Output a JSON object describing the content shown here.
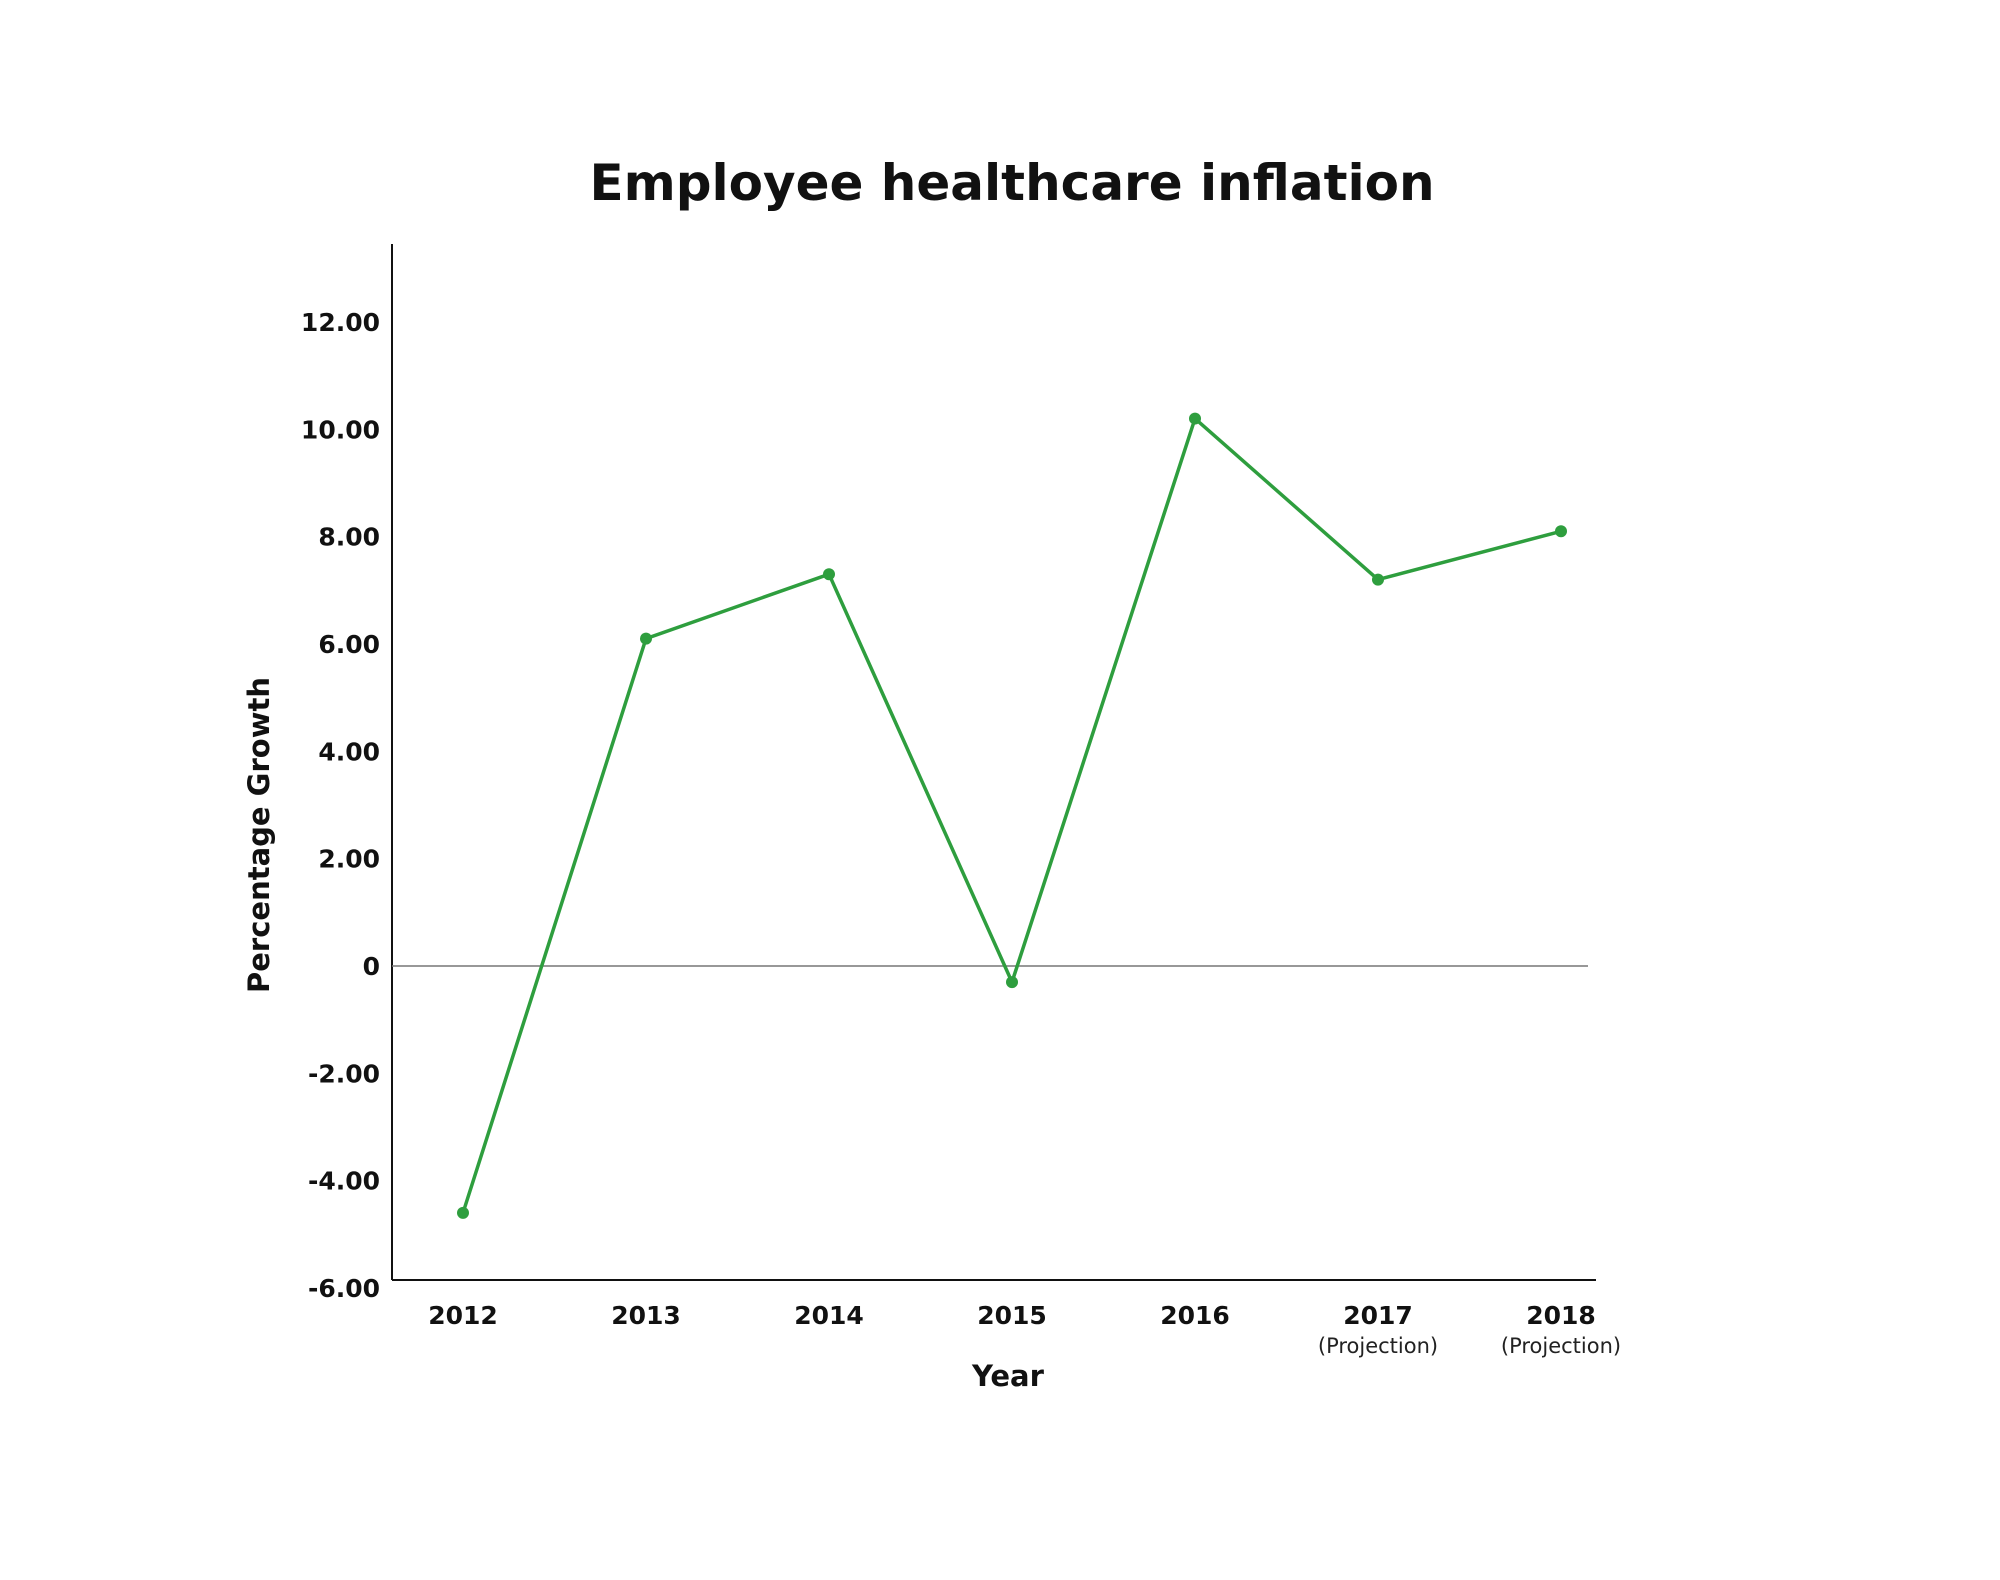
{
  "chart_data": {
    "type": "line",
    "title": "Employee healthcare inflation",
    "xlabel": "Year",
    "ylabel": "Percentage Growth",
    "categories": [
      "2012",
      "2013",
      "2014",
      "2015",
      "2016",
      "2017",
      "2018"
    ],
    "category_notes": [
      "",
      "",
      "",
      "",
      "",
      "(Projection)",
      "(Projection)"
    ],
    "series": [
      {
        "values": [
          -4.6,
          6.1,
          7.3,
          -0.3,
          10.2,
          7.2,
          8.1
        ],
        "color": "#2e9e3e"
      }
    ],
    "y_ticks": [
      12,
      10,
      8,
      6,
      4,
      2,
      0,
      -2,
      -4,
      -6
    ],
    "y_tick_labels": [
      "12.00",
      "10.00",
      "8.00",
      "6.00",
      "4.00",
      "2.00",
      "0",
      "-2.00",
      "-4.00",
      "-6.00"
    ],
    "ylim": [
      -6,
      13
    ],
    "zero_line": true,
    "grid": false,
    "legend": false
  }
}
